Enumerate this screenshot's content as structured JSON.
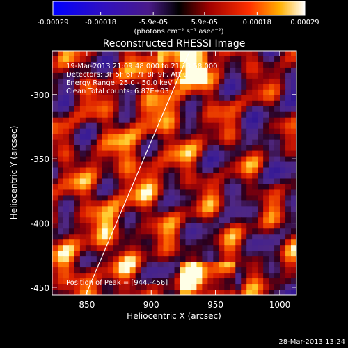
{
  "chart_data": {
    "type": "heatmap",
    "title": "Reconstructed RHESSI Image",
    "xlabel": "Heliocentric X (arcsec)",
    "ylabel": "Heliocentric Y (arcsec)",
    "xlim": [
      823,
      1013
    ],
    "ylim": [
      -456,
      -266
    ],
    "x_ticks": [
      850,
      900,
      950,
      1000
    ],
    "y_ticks": [
      -300,
      -350,
      -400,
      -450
    ],
    "colorbar": {
      "range": [
        -0.00029,
        0.00029
      ],
      "tick_labels": [
        "-0.00029",
        "-0.00018",
        "-5.9e-05",
        "5.9e-05",
        "0.00018",
        "0.00029"
      ],
      "tick_values": [
        -0.00029,
        -0.00018,
        -5.9e-05,
        5.9e-05,
        0.00018,
        0.00029
      ],
      "unit_label": "(photons cm⁻² s⁻¹ asec⁻²)"
    },
    "annotations": [
      "19-Mar-2013 21:09:48.000 to 21:13:58.000",
      "Detectors: 3F 5F 6F 7F 8F 9F, Att 0",
      "Energy Range: 25.0 - 50.0 keV",
      "Clean     Total counts: 6.87E+03"
    ],
    "peak_label": "Position of Peak = [944,-456]",
    "limb_line": {
      "x1": 849,
      "y1": -456,
      "x2": 930,
      "y2": -266
    },
    "timestamp": "28-Mar-2013 13:24"
  }
}
